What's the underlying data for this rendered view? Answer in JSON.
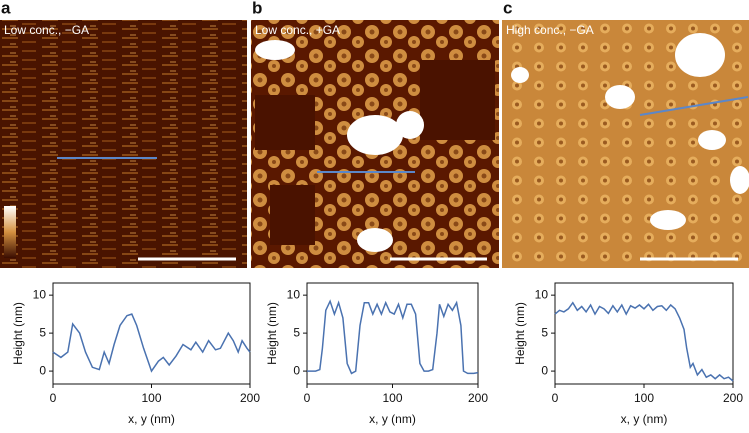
{
  "panels": [
    {
      "label": "a",
      "caption": "Low conc., −GA"
    },
    {
      "label": "b",
      "caption": "Low conc., +GA"
    },
    {
      "label": "c",
      "caption": "High conc., −GA"
    }
  ],
  "chart_data": [
    {
      "type": "line",
      "xlabel": "x, y (nm)",
      "ylabel": "Height (nm)",
      "xlim": [
        0,
        200
      ],
      "ylim": [
        -1.7,
        11.6
      ],
      "xticks": [
        0,
        100,
        200
      ],
      "yticks": [
        0,
        5,
        10
      ],
      "x": [
        0,
        8,
        15,
        20,
        27,
        33,
        40,
        47,
        52,
        57,
        62,
        68,
        75,
        80,
        85,
        92,
        100,
        107,
        112,
        118,
        125,
        132,
        140,
        145,
        152,
        158,
        165,
        170,
        178,
        183,
        188,
        192,
        197,
        200
      ],
      "series": [
        {
          "color": "#4a72b0",
          "values": [
            2.5,
            1.8,
            2.5,
            6.2,
            5,
            2.5,
            0.5,
            0.2,
            2.5,
            1,
            3.5,
            6,
            7.3,
            7.5,
            6,
            3,
            0,
            1.3,
            1.8,
            0.8,
            2,
            3.5,
            2.8,
            3.8,
            2.5,
            4,
            2.8,
            3,
            5,
            4,
            2.5,
            4,
            3,
            2.5
          ]
        }
      ]
    },
    {
      "type": "line",
      "xlabel": "x, y (nm)",
      "ylabel": "Height (nm)",
      "xlim": [
        0,
        200
      ],
      "ylim": [
        -1.7,
        11.6
      ],
      "xticks": [
        0,
        100,
        200
      ],
      "yticks": [
        0,
        5,
        10
      ],
      "x": [
        0,
        10,
        15,
        18,
        22,
        27,
        32,
        37,
        42,
        47,
        52,
        57,
        62,
        67,
        72,
        77,
        82,
        87,
        92,
        97,
        102,
        107,
        112,
        117,
        122,
        127,
        132,
        137,
        142,
        147,
        152,
        155,
        160,
        165,
        170,
        175,
        180,
        183,
        188,
        195,
        200
      ],
      "series": [
        {
          "color": "#4a72b0",
          "values": [
            0,
            0,
            0.2,
            3,
            8,
            9.2,
            7.5,
            9,
            7,
            1,
            -0.3,
            0,
            6,
            9,
            9,
            7.5,
            8.8,
            7.5,
            9,
            7.8,
            7.5,
            8.8,
            7,
            8.8,
            8.8,
            7.5,
            1,
            0,
            0,
            0.2,
            5,
            8.8,
            7.2,
            8.8,
            8,
            9,
            6,
            0,
            -0.3,
            -0.3,
            -0.2
          ]
        }
      ]
    },
    {
      "type": "line",
      "xlabel": "x, y (nm)",
      "ylabel": "Height (nm)",
      "xlim": [
        0,
        200
      ],
      "ylim": [
        -1.7,
        11.6
      ],
      "xticks": [
        0,
        100,
        200
      ],
      "yticks": [
        0,
        5,
        10
      ],
      "x": [
        0,
        5,
        10,
        15,
        20,
        25,
        30,
        35,
        40,
        45,
        50,
        55,
        60,
        65,
        70,
        75,
        80,
        85,
        90,
        95,
        100,
        105,
        110,
        115,
        120,
        125,
        130,
        135,
        140,
        145,
        148,
        152,
        155,
        160,
        165,
        170,
        175,
        180,
        185,
        190,
        195,
        200
      ],
      "series": [
        {
          "color": "#4a72b0",
          "values": [
            7.5,
            8,
            7.8,
            8.2,
            9,
            8,
            8.5,
            7.8,
            8.7,
            7.5,
            8.5,
            8.2,
            7.6,
            8.6,
            7.8,
            8.7,
            7.5,
            8.6,
            8.3,
            8.7,
            8.2,
            8.8,
            8,
            8.5,
            8.6,
            8,
            8.7,
            8.2,
            7,
            5.5,
            3,
            0.5,
            1,
            -0.5,
            0.2,
            -0.8,
            -0.5,
            -1,
            -0.5,
            -1,
            -0.8,
            -1.3
          ]
        }
      ]
    }
  ]
}
